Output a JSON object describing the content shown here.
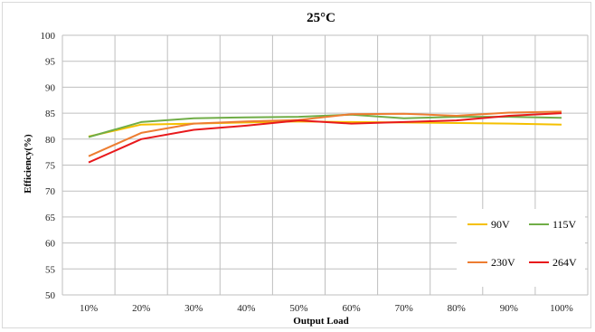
{
  "chart_data": {
    "type": "line",
    "title": "25°C",
    "xlabel": "Output Load",
    "ylabel": "Efficiency(%)",
    "categories": [
      "10%",
      "20%",
      "30%",
      "40%",
      "50%",
      "60%",
      "70%",
      "80%",
      "90%",
      "100%"
    ],
    "ylim": [
      50,
      100
    ],
    "yticks": [
      50,
      55,
      60,
      65,
      70,
      75,
      80,
      85,
      90,
      95,
      100
    ],
    "grid": true,
    "legend_position": "bottom-right",
    "series": [
      {
        "name": "90V",
        "color": "#f5c000",
        "values": [
          80.5,
          82.8,
          83.0,
          83.2,
          83.4,
          83.3,
          83.2,
          83.1,
          83.0,
          82.8
        ]
      },
      {
        "name": "115V",
        "color": "#70ad47",
        "values": [
          80.4,
          83.3,
          84.0,
          84.2,
          84.3,
          84.7,
          84.0,
          84.3,
          84.3,
          84.1
        ]
      },
      {
        "name": "230V",
        "color": "#ed7d31",
        "values": [
          76.7,
          81.2,
          83.0,
          83.4,
          83.7,
          84.8,
          84.9,
          84.5,
          85.1,
          85.3
        ]
      },
      {
        "name": "264V",
        "color": "#e8191c",
        "values": [
          75.5,
          80.0,
          81.8,
          82.6,
          83.6,
          83.0,
          83.3,
          83.6,
          84.5,
          85.0
        ]
      }
    ]
  }
}
